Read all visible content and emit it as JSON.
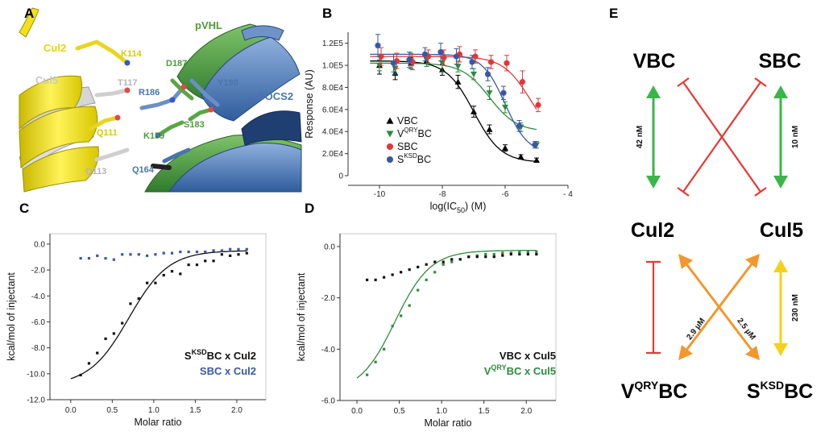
{
  "panels": {
    "A": "A",
    "B": "B",
    "C": "C",
    "D": "D",
    "E": "E"
  },
  "structure": {
    "labels": [
      {
        "text": "Cul2",
        "color": "#e3d40f"
      },
      {
        "text": "K114",
        "color": "#d9c90c"
      },
      {
        "text": "Cul5",
        "color": "#c8c8c8"
      },
      {
        "text": "T117",
        "color": "#b4b4b4"
      },
      {
        "text": "pVHL",
        "color": "#4f9a3a"
      },
      {
        "text": "D187",
        "color": "#4f9a3a"
      },
      {
        "text": "R186",
        "color": "#4a74ad"
      },
      {
        "text": "Y190",
        "color": "#4a74ad"
      },
      {
        "text": "SOCS2",
        "color": "#4a74ad"
      },
      {
        "text": "Q111",
        "color": "#d9c90c"
      },
      {
        "text": "K159",
        "color": "#4f9a3a"
      },
      {
        "text": "S183",
        "color": "#4f9a3a"
      },
      {
        "text": "Q113",
        "color": "#b4b4b4"
      },
      {
        "text": "Q164",
        "color": "#4a74ad"
      }
    ]
  },
  "chart_data": [
    {
      "id": "B",
      "type": "scatter",
      "xlabel": "log(IC50) (M)",
      "xlabel_parts": {
        "pre": "log(IC",
        "sub": "50",
        "post": ") (M)"
      },
      "ylabel": "Response (AU)",
      "xlim": [
        -11,
        -4
      ],
      "ylim": [
        0,
        130000
      ],
      "xticks": [
        -10,
        -8,
        -6,
        -4
      ],
      "xtick_labels": [
        "-10",
        "-8",
        "-6",
        "- 4"
      ],
      "yticks": [
        0,
        20000,
        40000,
        60000,
        80000,
        100000,
        120000
      ],
      "ytick_labels": [
        "0",
        "2.0E4",
        "4.0E4",
        "6.0E4",
        "8.0E4",
        "1.0E5",
        "1.2E5"
      ],
      "series": [
        {
          "name": "VBC",
          "base": "V",
          "sup": "",
          "post": "BC",
          "color": "#000000",
          "marker": "triangle-up",
          "points": [
            [
              -10.0,
              100000,
              8000
            ],
            [
              -9.5,
              93000,
              6000
            ],
            [
              -9.0,
              102000,
              5000
            ],
            [
              -8.5,
              104000,
              5000
            ],
            [
              -8.0,
              96000,
              5000
            ],
            [
              -7.5,
              85000,
              6000
            ],
            [
              -7.0,
              58000,
              5000
            ],
            [
              -6.5,
              42000,
              4000
            ],
            [
              -6.0,
              25000,
              3000
            ],
            [
              -5.5,
              17000,
              2000
            ],
            [
              -5.0,
              14000,
              2000
            ]
          ],
          "fit": {
            "top": 104000,
            "bottom": 12000,
            "logec50": -7.0,
            "hill": 1.0
          }
        },
        {
          "name": "VQRYBC",
          "base": "V",
          "sup": "QRY",
          "post": "BC",
          "color": "#2e8b3e",
          "marker": "triangle-down",
          "points": [
            [
              -10.0,
              100000,
              5000
            ],
            [
              -9.5,
              97000,
              5000
            ],
            [
              -9.0,
              104000,
              7000
            ],
            [
              -8.5,
              105000,
              6000
            ],
            [
              -8.0,
              102000,
              8000
            ],
            [
              -7.5,
              99000,
              5000
            ],
            [
              -7.0,
              92000,
              5000
            ],
            [
              -6.5,
              75000,
              6000
            ],
            [
              -6.0,
              62000,
              5000
            ],
            [
              -5.5,
              44000,
              4000
            ],
            [
              -5.0,
              28000,
              3000
            ]
          ],
          "fit": {
            "top": 102000,
            "bottom": 40000,
            "logec50": -6.5,
            "hill": 1.0
          }
        },
        {
          "name": "SBC",
          "base": "S",
          "sup": "",
          "post": "BC",
          "color": "#e03838",
          "marker": "circle",
          "points": [
            [
              -10.0,
              108000,
              8000
            ],
            [
              -9.5,
              104000,
              7000
            ],
            [
              -9.0,
              103000,
              7000
            ],
            [
              -8.5,
              108000,
              6000
            ],
            [
              -8.0,
              107000,
              7000
            ],
            [
              -7.5,
              110000,
              7000
            ],
            [
              -7.0,
              108000,
              6000
            ],
            [
              -6.5,
              103000,
              6000
            ],
            [
              -6.0,
              102000,
              7000
            ],
            [
              -5.5,
              85000,
              10000
            ],
            [
              -5.0,
              64000,
              6000
            ]
          ],
          "fit": {
            "top": 108000,
            "bottom": 30000,
            "logec50": -5.2,
            "hill": 1.0
          }
        },
        {
          "name": "SKSDBC",
          "base": "S",
          "sup": "KSD",
          "post": "BC",
          "color": "#3a57a5",
          "marker": "circle",
          "points": [
            [
              -10.0,
              118000,
              10000
            ],
            [
              -9.5,
              102000,
              8000
            ],
            [
              -9.0,
              105000,
              7000
            ],
            [
              -8.5,
              110000,
              6000
            ],
            [
              -8.0,
              112000,
              8000
            ],
            [
              -7.5,
              108000,
              7000
            ],
            [
              -7.0,
              103000,
              6000
            ],
            [
              -6.5,
              92000,
              6000
            ],
            [
              -6.0,
              75000,
              6000
            ],
            [
              -5.5,
              45000,
              5000
            ],
            [
              -5.0,
              28000,
              3000
            ]
          ],
          "fit": {
            "top": 110000,
            "bottom": 20000,
            "logec50": -6.0,
            "hill": 1.2
          }
        }
      ]
    },
    {
      "id": "C",
      "type": "scatter",
      "xlabel": "Molar ratio",
      "ylabel": "kcal/mol of injectant",
      "xlim": [
        -0.25,
        2.35
      ],
      "ylim": [
        -12,
        0.8
      ],
      "xticks": [
        0.0,
        0.5,
        1.0,
        1.5,
        2.0
      ],
      "xtick_labels": [
        "0.0",
        "0.5",
        "1.0",
        "1.5",
        "2.0"
      ],
      "yticks": [
        0,
        -2,
        -4,
        -6,
        -8,
        -10,
        -12
      ],
      "ytick_labels": [
        "0.0",
        "-2.0",
        "-4.0",
        "-6.0",
        "-8.0",
        "-10.0",
        "-12.0"
      ],
      "legend": [
        {
          "base": "S",
          "sup": "KSD",
          "post": "BC x Cul2",
          "color": "#111111"
        },
        {
          "base": "SBC x Cul2",
          "sup": "",
          "post": "",
          "color": "#3a57a5"
        }
      ],
      "series": [
        {
          "name": "SKSDBC x Cul2",
          "color": "#111111",
          "x": [
            0.12,
            0.22,
            0.32,
            0.42,
            0.52,
            0.62,
            0.72,
            0.82,
            0.92,
            1.02,
            1.12,
            1.22,
            1.32,
            1.42,
            1.52,
            1.62,
            1.72,
            1.82,
            1.92,
            2.02,
            2.12
          ],
          "y": [
            -10.1,
            -9.2,
            -8.4,
            -7.3,
            -6.9,
            -6.1,
            -4.6,
            -4.2,
            -3.0,
            -3.0,
            -2.4,
            -2.1,
            -2.3,
            -1.6,
            -1.6,
            -1.3,
            -1.3,
            -0.8,
            -0.9,
            -0.8,
            -0.7
          ],
          "fit": {
            "bottom": -10.9,
            "top": -0.5,
            "mid": 0.7,
            "k": 4.2
          }
        },
        {
          "name": "SBC x Cul2",
          "color": "#3a57a5",
          "x": [
            0.12,
            0.22,
            0.32,
            0.42,
            0.52,
            0.62,
            0.72,
            0.82,
            0.92,
            1.02,
            1.12,
            1.22,
            1.32,
            1.42,
            1.52,
            1.62,
            1.72,
            1.82,
            1.92,
            2.02,
            2.12
          ],
          "y": [
            -1.1,
            -1.1,
            -0.9,
            -1.1,
            -1.2,
            -0.8,
            -0.8,
            -0.8,
            -0.9,
            -0.8,
            -0.7,
            -0.7,
            -0.6,
            -0.6,
            -0.6,
            -0.6,
            -0.5,
            -0.5,
            -0.4,
            -0.4,
            -0.4
          ]
        }
      ]
    },
    {
      "id": "D",
      "type": "scatter",
      "xlabel": "Molar ratio",
      "ylabel": "kcal/mol of injectant",
      "xlim": [
        -0.2,
        2.35
      ],
      "ylim": [
        -6,
        0.5
      ],
      "xticks": [
        0.0,
        0.5,
        1.0,
        1.5,
        2.0
      ],
      "xtick_labels": [
        "0.0",
        "0.5",
        "1.0",
        "1.5",
        "2.0"
      ],
      "yticks": [
        0,
        -2,
        -4,
        -6
      ],
      "ytick_labels": [
        "0.0",
        "-2.0",
        "-4.0",
        "-6.0"
      ],
      "legend": [
        {
          "base": "VBC x Cul5",
          "sup": "",
          "post": "",
          "color": "#111111"
        },
        {
          "base": "V",
          "sup": "QRY",
          "post": "BC x Cul5",
          "color": "#2e8b3e"
        }
      ],
      "series": [
        {
          "name": "VQRYBC x Cul5",
          "color": "#2e8b3e",
          "x": [
            0.12,
            0.22,
            0.32,
            0.42,
            0.52,
            0.62,
            0.72,
            0.82,
            0.92,
            1.02,
            1.12,
            1.22,
            1.32,
            1.42,
            1.52,
            1.62,
            1.72,
            1.82,
            1.92,
            2.02,
            2.12
          ],
          "y": [
            -5.0,
            -4.5,
            -4.0,
            -3.1,
            -2.7,
            -2.3,
            -1.7,
            -1.3,
            -1.0,
            -0.7,
            -0.6,
            -0.5,
            -0.4,
            -0.35,
            -0.3,
            -0.3,
            -0.25,
            -0.25,
            -0.2,
            -0.2,
            -0.2
          ],
          "fit": {
            "bottom": -5.7,
            "top": -0.15,
            "mid": 0.45,
            "k": 4.8
          }
        },
        {
          "name": "VBC x Cul5",
          "color": "#111111",
          "x": [
            0.12,
            0.22,
            0.32,
            0.42,
            0.52,
            0.62,
            0.72,
            0.82,
            0.92,
            1.02,
            1.12,
            1.22,
            1.32,
            1.42,
            1.52,
            1.62,
            1.72,
            1.82,
            1.92,
            2.02,
            2.12
          ],
          "y": [
            -1.3,
            -1.3,
            -1.2,
            -1.1,
            -1.0,
            -0.9,
            -0.8,
            -0.7,
            -0.6,
            -0.6,
            -0.5,
            -0.5,
            -0.4,
            -0.4,
            -0.4,
            -0.4,
            -0.35,
            -0.3,
            -0.3,
            -0.3,
            -0.3
          ]
        }
      ]
    }
  ],
  "diagram": {
    "nodes": {
      "VBC": {
        "base": "VBC",
        "sup": ""
      },
      "SBC": {
        "base": "SBC",
        "sup": ""
      },
      "Cul2": {
        "base": "Cul2",
        "sup": ""
      },
      "Cul5": {
        "base": "Cul5",
        "sup": ""
      },
      "VQRYBC": {
        "base": "V",
        "sup": "QRY",
        "post": "BC"
      },
      "SKSDBC": {
        "base": "S",
        "sup": "KSD",
        "post": "BC"
      }
    },
    "kd": {
      "vbc_cul2": "42 nM",
      "sbc_cul5": "10 nM",
      "vqry_cul5": "2.9 µM",
      "sksd_cul2": "2.5 µM",
      "sksd_cul5": "230 nM"
    },
    "colors": {
      "green": "#3bb54a",
      "red": "#e53935",
      "orange": "#f2972c",
      "yellow": "#f2d21a"
    }
  }
}
